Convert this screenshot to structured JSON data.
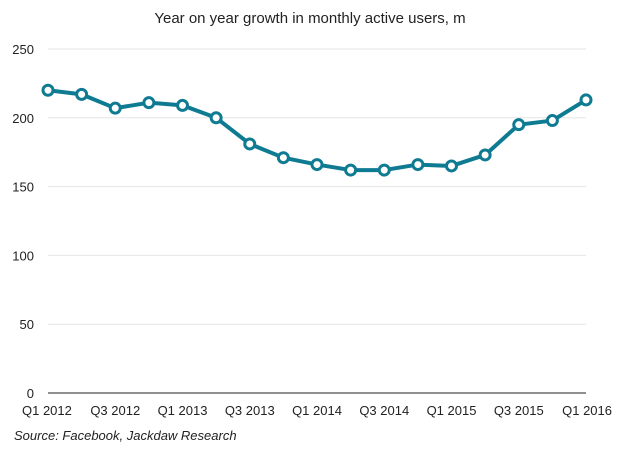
{
  "chart_data": {
    "type": "line",
    "title": "Year on year growth in monthly active users, m",
    "xlabel": "",
    "ylabel": "",
    "categories": [
      "Q1 2012",
      "Q2 2012",
      "Q3 2012",
      "Q4 2012",
      "Q1 2013",
      "Q2 2013",
      "Q3 2013",
      "Q4 2013",
      "Q1 2014",
      "Q2 2014",
      "Q3 2014",
      "Q4 2014",
      "Q1 2015",
      "Q2 2015",
      "Q3 2015",
      "Q4 2015",
      "Q1 2016"
    ],
    "x_tick_labels": [
      "Q1 2012",
      "Q3 2012",
      "Q1 2013",
      "Q3 2013",
      "Q1 2014",
      "Q3 2014",
      "Q1 2015",
      "Q3 2015",
      "Q1 2016"
    ],
    "y_ticks": [
      0,
      50,
      100,
      150,
      200,
      250
    ],
    "ylim": [
      0,
      250
    ],
    "grid": true,
    "legend": "none",
    "series": [
      {
        "values": [
          220,
          217,
          207,
          211,
          209,
          200,
          181,
          171,
          166,
          162,
          162,
          166,
          165,
          173,
          195,
          198,
          213
        ]
      }
    ],
    "line_color": "#0f7b92",
    "marker_fill": "#ffffff",
    "grid_color": "#e6e6e6",
    "source": "Source: Facebook, Jackdaw Research"
  }
}
